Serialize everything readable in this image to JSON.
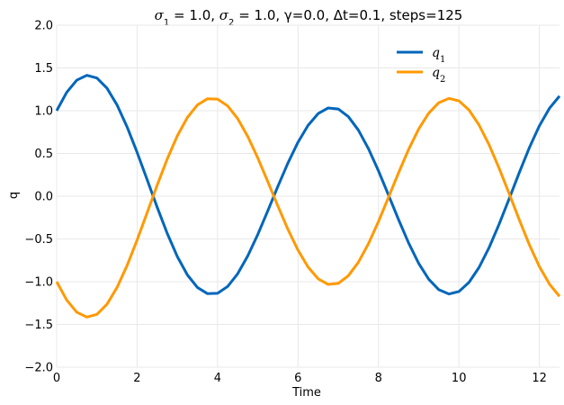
{
  "chart_data": {
    "type": "line",
    "title": {
      "sigma1_value": "1.0",
      "sigma2_value": "1.0",
      "rest": ", γ=0.0, Δt=0.1, steps=125"
    },
    "xlabel": "Time",
    "ylabel": "q",
    "xlim": [
      0,
      12.5
    ],
    "ylim": [
      -2.0,
      2.0
    ],
    "xticks": [
      0,
      2,
      4,
      6,
      8,
      10,
      12
    ],
    "xtick_labels": [
      "0",
      "2",
      "4",
      "6",
      "8",
      "10",
      "12"
    ],
    "yticks": [
      -2.0,
      -1.5,
      -1.0,
      -0.5,
      0.0,
      0.5,
      1.0,
      1.5,
      2.0
    ],
    "ytick_labels": [
      "−2.0",
      "−1.5",
      "−1.0",
      "−0.5",
      "0.0",
      "0.5",
      "1.0",
      "1.5",
      "2.0"
    ],
    "grid": true,
    "legend": "top-right",
    "series": [
      {
        "name": "q",
        "subscript": "1",
        "color": "#0066bb",
        "x": [
          0,
          0.25,
          0.5,
          0.75,
          1,
          1.25,
          1.5,
          1.75,
          2,
          2.25,
          2.5,
          2.75,
          3,
          3.25,
          3.5,
          3.75,
          4,
          4.25,
          4.5,
          4.75,
          5,
          5.25,
          5.5,
          5.75,
          6,
          6.25,
          6.5,
          6.75,
          7,
          7.25,
          7.5,
          7.75,
          8,
          8.25,
          8.5,
          8.75,
          9,
          9.25,
          9.5,
          9.75,
          10,
          10.25,
          10.5,
          10.75,
          11,
          11.25,
          11.5,
          11.75,
          12,
          12.25,
          12.5
        ],
        "y": [
          1.0,
          1.215,
          1.357,
          1.414,
          1.382,
          1.264,
          1.068,
          0.811,
          0.512,
          0.192,
          -0.131,
          -0.437,
          -0.707,
          -0.921,
          -1.068,
          -1.14,
          -1.136,
          -1.056,
          -0.907,
          -0.699,
          -0.447,
          -0.169,
          0.116,
          0.389,
          0.632,
          0.829,
          0.966,
          1.032,
          1.02,
          0.931,
          0.773,
          0.556,
          0.296,
          0.012,
          -0.275,
          -0.548,
          -0.786,
          -0.972,
          -1.094,
          -1.144,
          -1.115,
          -1.008,
          -0.833,
          -0.601,
          -0.326,
          -0.028,
          0.276,
          0.567,
          0.823,
          1.028,
          1.171
        ]
      },
      {
        "name": "q",
        "subscript": "2",
        "color": "#ff9900",
        "x": [
          0,
          0.25,
          0.5,
          0.75,
          1,
          1.25,
          1.5,
          1.75,
          2,
          2.25,
          2.5,
          2.75,
          3,
          3.25,
          3.5,
          3.75,
          4,
          4.25,
          4.5,
          4.75,
          5,
          5.25,
          5.5,
          5.75,
          6,
          6.25,
          6.5,
          6.75,
          7,
          7.25,
          7.5,
          7.75,
          8,
          8.25,
          8.5,
          8.75,
          9,
          9.25,
          9.5,
          9.75,
          10,
          10.25,
          10.5,
          10.75,
          11,
          11.25,
          11.5,
          11.75,
          12,
          12.25,
          12.5
        ],
        "y": [
          -1.0,
          -1.215,
          -1.357,
          -1.414,
          -1.382,
          -1.264,
          -1.068,
          -0.811,
          -0.512,
          -0.192,
          0.131,
          0.437,
          0.707,
          0.921,
          1.068,
          1.14,
          1.136,
          1.056,
          0.907,
          0.699,
          0.447,
          0.169,
          -0.116,
          -0.389,
          -0.632,
          -0.829,
          -0.966,
          -1.032,
          -1.02,
          -0.931,
          -0.773,
          -0.556,
          -0.296,
          -0.012,
          0.275,
          0.548,
          0.786,
          0.972,
          1.094,
          1.144,
          1.115,
          1.008,
          0.833,
          0.601,
          0.326,
          0.028,
          -0.276,
          -0.567,
          -0.823,
          -1.028,
          -1.171
        ]
      }
    ]
  }
}
